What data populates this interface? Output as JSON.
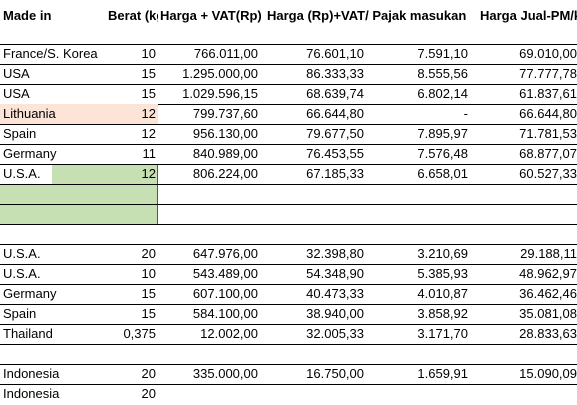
{
  "headers": {
    "made_in": "Made in",
    "berat": "Berat (kg)",
    "harga_vat": "Harga + VAT(Rp)",
    "harga_rp_vat": "Harga (Rp)+VAT/ Pajak masukan",
    "harga_jual": "Harga Jual-PM/kg"
  },
  "rows": [
    {
      "made_in": "",
      "berat": "",
      "harga_vat": "",
      "harga_rp_vat": "",
      "pajak": "",
      "harga_jual": ""
    },
    {
      "made_in": "France/S. Korea",
      "berat": "10",
      "harga_vat": "766.011,00",
      "harga_rp_vat": "76.601,10",
      "pajak": "7.591,10",
      "harga_jual": "69.010,00"
    },
    {
      "made_in": "USA",
      "berat": "15",
      "harga_vat": "1.295.000,00",
      "harga_rp_vat": "86.333,33",
      "pajak": "8.555,56",
      "harga_jual": "77.777,78"
    },
    {
      "made_in": "USA",
      "berat": "15",
      "harga_vat": "1.029.596,15",
      "harga_rp_vat": "68.639,74",
      "pajak": "6.802,14",
      "harga_jual": "61.837,61"
    },
    {
      "made_in": "Lithuania",
      "berat": "12",
      "harga_vat": "799.737,60",
      "harga_rp_vat": "66.644,80",
      "pajak": "-",
      "harga_jual": "66.644,80"
    },
    {
      "made_in": "Spain",
      "berat": "12",
      "harga_vat": "956.130,00",
      "harga_rp_vat": "79.677,50",
      "pajak": "7.895,97",
      "harga_jual": "71.781,53"
    },
    {
      "made_in": "Germany",
      "berat": "11",
      "harga_vat": "840.989,00",
      "harga_rp_vat": "76.453,55",
      "pajak": "7.576,48",
      "harga_jual": "68.877,07"
    },
    {
      "made_in": "U.S.A.",
      "berat": "12",
      "harga_vat": "806.224,00",
      "harga_rp_vat": "67.185,33",
      "pajak": "6.658,01",
      "harga_jual": "60.527,33"
    },
    {
      "made_in": "",
      "berat": "",
      "harga_vat": "",
      "harga_rp_vat": "",
      "pajak": "",
      "harga_jual": ""
    },
    {
      "made_in": "",
      "berat": "",
      "harga_vat": "",
      "harga_rp_vat": "",
      "pajak": "",
      "harga_jual": ""
    },
    {
      "made_in": "",
      "berat": "",
      "harga_vat": "",
      "harga_rp_vat": "",
      "pajak": "",
      "harga_jual": ""
    },
    {
      "made_in": "U.S.A.",
      "berat": "20",
      "harga_vat": "647.976,00",
      "harga_rp_vat": "32.398,80",
      "pajak": "3.210,69",
      "harga_jual": "29.188,11"
    },
    {
      "made_in": "U.S.A.",
      "berat": "10",
      "harga_vat": "543.489,00",
      "harga_rp_vat": "54.348,90",
      "pajak": "5.385,93",
      "harga_jual": "48.962,97"
    },
    {
      "made_in": "Germany",
      "berat": "15",
      "harga_vat": "607.100,00",
      "harga_rp_vat": "40.473,33",
      "pajak": "4.010,87",
      "harga_jual": "36.462,46"
    },
    {
      "made_in": "Spain",
      "berat": "15",
      "harga_vat": "584.100,00",
      "harga_rp_vat": "38.940,00",
      "pajak": "3.858,92",
      "harga_jual": "35.081,08"
    },
    {
      "made_in": "Thailand",
      "berat": "0,375",
      "harga_vat": "12.002,00",
      "harga_rp_vat": "32.005,33",
      "pajak": "3.171,70",
      "harga_jual": "28.833,63"
    },
    {
      "made_in": "",
      "berat": "",
      "harga_vat": "",
      "harga_rp_vat": "",
      "pajak": "",
      "harga_jual": ""
    },
    {
      "made_in": "Indonesia",
      "berat": "20",
      "harga_vat": "335.000,00",
      "harga_rp_vat": "16.750,00",
      "pajak": "1.659,91",
      "harga_jual": "15.090,09"
    },
    {
      "made_in": "Indonesia",
      "berat": "20",
      "harga_vat": "",
      "harga_rp_vat": "",
      "pajak": "",
      "harga_jual": ""
    }
  ],
  "colors": {
    "highlight_orange": "#fce4d6",
    "highlight_green": "#c6e0b4"
  }
}
